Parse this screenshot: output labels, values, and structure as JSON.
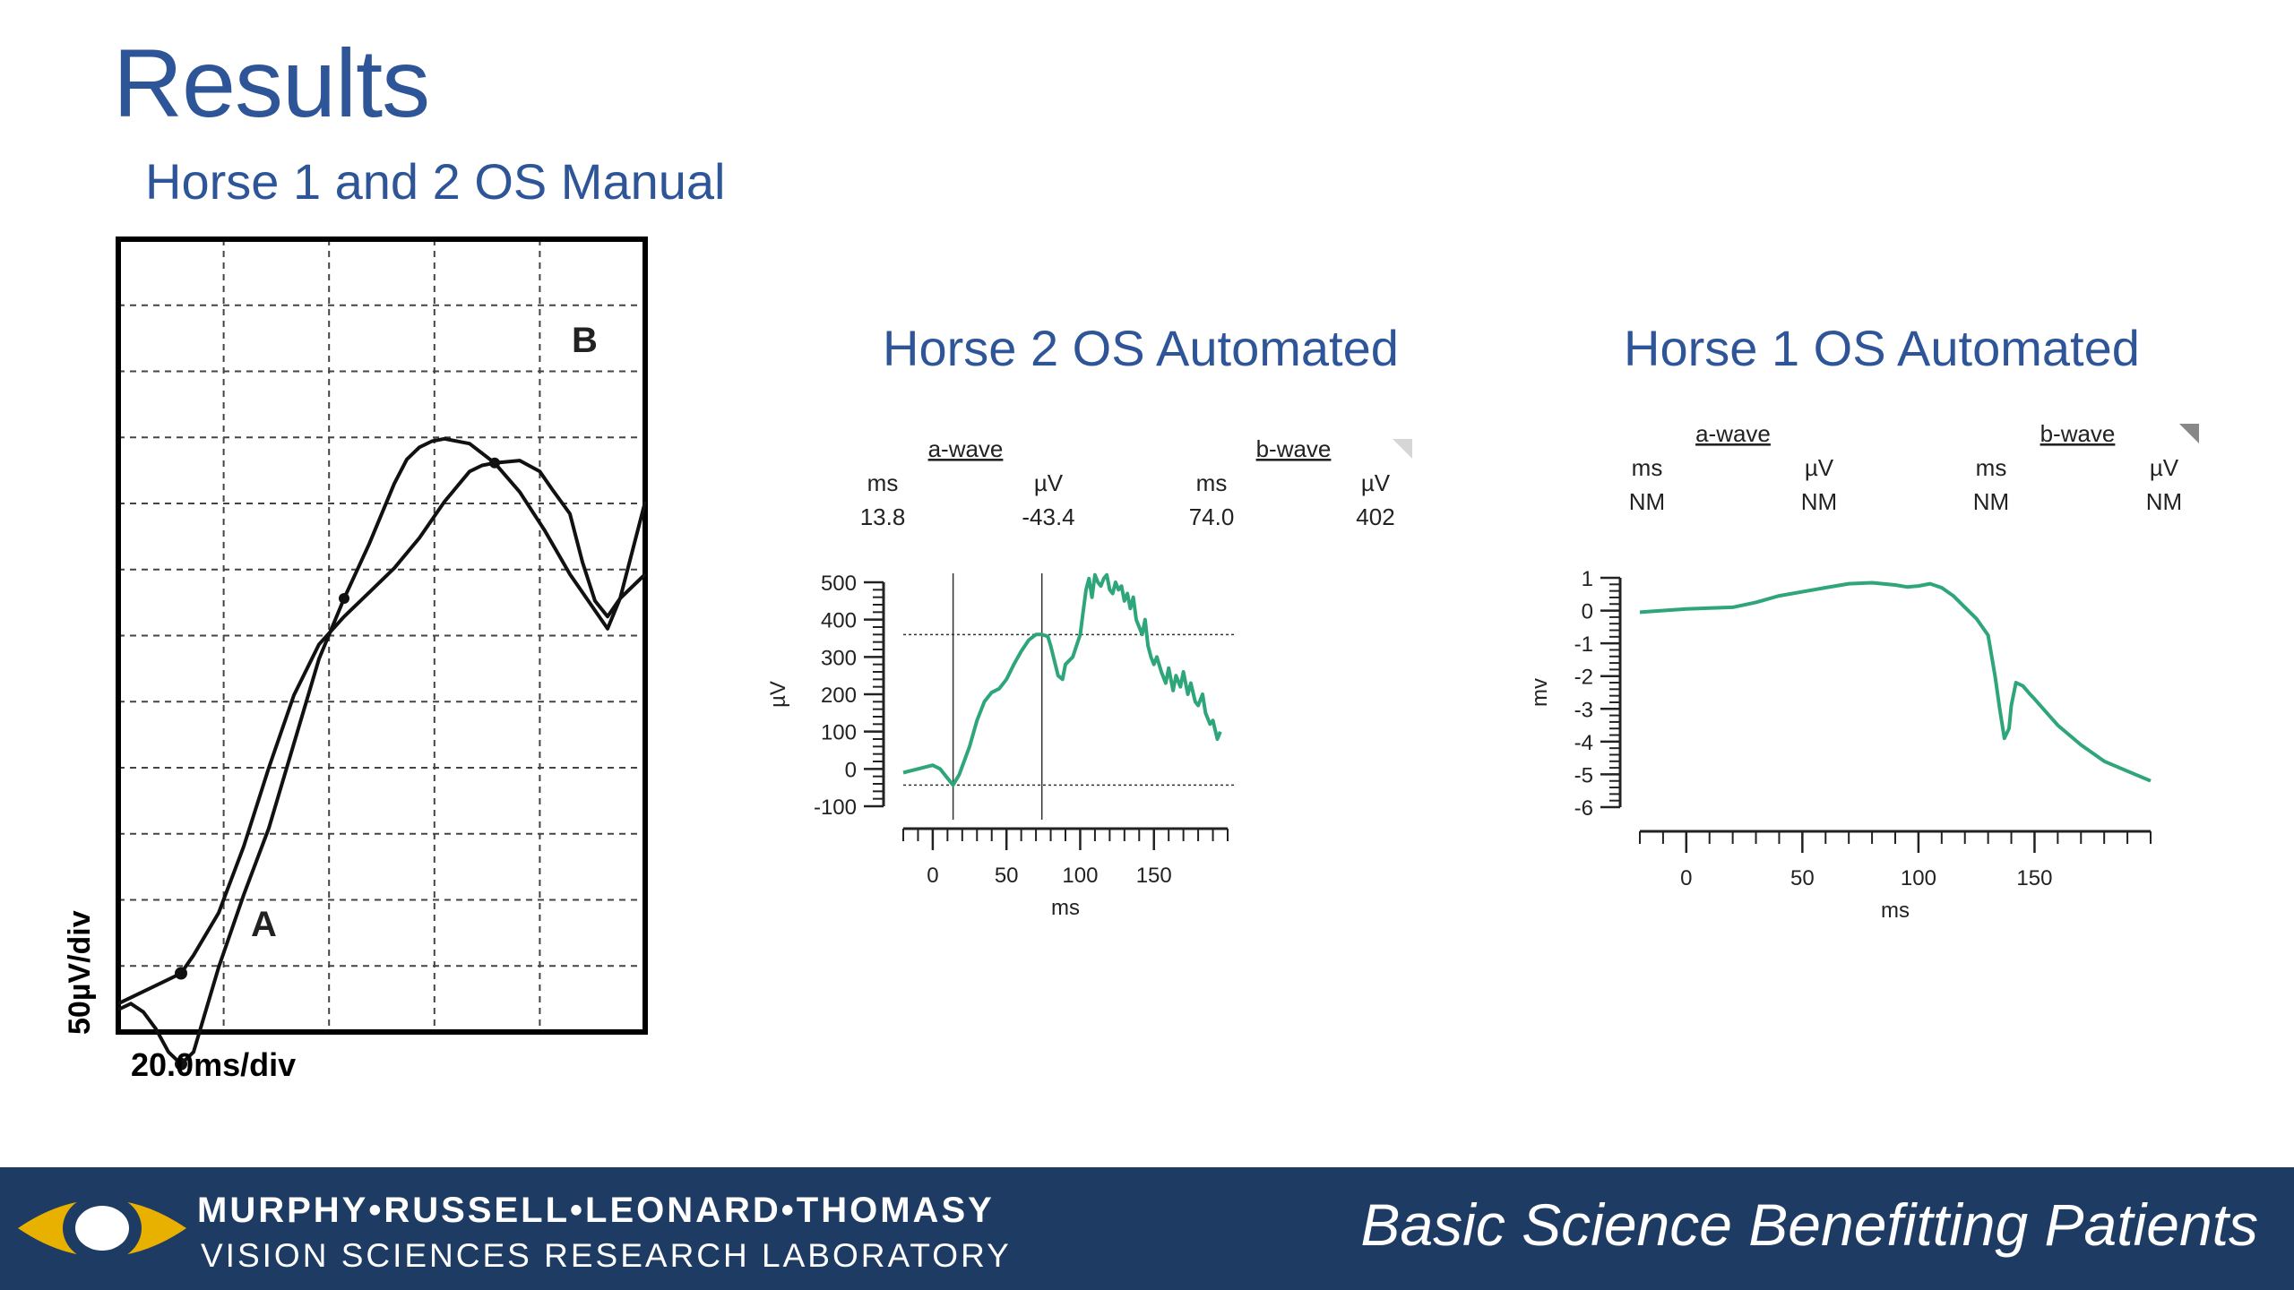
{
  "slide": {
    "title": "Results",
    "tagline": "Basic Science Benefitting Patients",
    "lab": {
      "name": "MURPHY•RUSSELL•LEONARD•THOMASY",
      "subtitle": "VISION SCIENCES RESEARCH LABORATORY"
    },
    "colors": {
      "title": "#2e5597",
      "footer": "#1e3c63",
      "logo_gold": "#e8b100",
      "trace_green": "#2ea67a"
    }
  },
  "chart_data": [
    {
      "type": "line",
      "title": "Horse 1 and 2 OS Manual",
      "xlabel": "20.0ms/div",
      "ylabel": "50µV/div",
      "grid": true,
      "annotations": {
        "a_label": "A",
        "b_label": "B"
      },
      "series": [
        {
          "x": [
            0,
            5,
            10,
            15,
            20,
            25,
            30,
            35,
            40,
            50,
            60,
            70,
            80,
            90,
            100,
            110,
            115,
            120,
            125,
            130,
            140,
            150,
            160,
            170,
            180,
            190,
            195,
            200,
            210
          ],
          "y": [
            -40,
            -35,
            -42,
            -56,
            -75,
            -85,
            -75,
            -40,
            -5,
            55,
            110,
            180,
            250,
            300,
            345,
            395,
            415,
            425,
            430,
            432,
            428,
            412,
            388,
            356,
            320,
            290,
            275,
            300,
            380
          ]
        },
        {
          "x": [
            0,
            10,
            20,
            25,
            30,
            40,
            50,
            60,
            70,
            80,
            90,
            100,
            110,
            120,
            130,
            140,
            145,
            150,
            160,
            168,
            173,
            180,
            185,
            190,
            195,
            200,
            210
          ],
          "y": [
            -35,
            -25,
            -15,
            -10,
            5,
            40,
            95,
            160,
            220,
            262,
            285,
            305,
            325,
            350,
            380,
            405,
            410,
            412,
            414,
            405,
            390,
            370,
            330,
            298,
            285,
            300,
            320
          ]
        }
      ]
    },
    {
      "type": "line",
      "title": "Horse 2 OS Automated",
      "xlabel": "ms",
      "ylabel": "µV",
      "xlim": [
        -20,
        200
      ],
      "ylim": [
        -100,
        500
      ],
      "xticks": [
        0,
        50,
        100,
        150
      ],
      "yticks": [
        500,
        400,
        300,
        200,
        100,
        0,
        -100
      ],
      "table": {
        "a_wave_label": "a-wave",
        "b_wave_label": "b-wave",
        "headers": [
          "ms",
          "µV",
          "ms",
          "µV"
        ],
        "values": [
          "13.8",
          "-43.4",
          "74.0",
          "402"
        ]
      },
      "markers": {
        "a_ms": 13.8,
        "a_uv": -43.4,
        "b_ms": 74.0,
        "b_uv": 360
      },
      "series": [
        {
          "x": [
            -20,
            -10,
            0,
            5,
            10,
            13.8,
            18,
            25,
            30,
            35,
            40,
            45,
            50,
            55,
            60,
            65,
            70,
            74,
            78,
            80,
            85,
            88,
            90,
            95,
            100,
            102,
            104,
            106,
            108,
            110,
            112,
            114,
            116,
            118,
            120,
            122,
            124,
            126,
            128,
            130,
            132,
            134,
            136,
            138,
            140,
            142,
            144,
            146,
            148,
            150,
            152,
            155,
            158,
            160,
            163,
            165,
            168,
            170,
            173,
            175,
            178,
            180,
            183,
            185,
            188,
            190,
            193,
            195
          ],
          "y": [
            -10,
            0,
            10,
            0,
            -25,
            -43,
            -15,
            60,
            130,
            180,
            205,
            215,
            240,
            280,
            315,
            345,
            360,
            360,
            355,
            330,
            250,
            240,
            280,
            300,
            360,
            420,
            480,
            510,
            460,
            520,
            500,
            490,
            510,
            520,
            480,
            470,
            500,
            480,
            490,
            450,
            470,
            430,
            460,
            400,
            380,
            360,
            400,
            330,
            300,
            280,
            300,
            260,
            230,
            270,
            210,
            250,
            220,
            260,
            200,
            230,
            180,
            170,
            200,
            150,
            120,
            130,
            80,
            100
          ]
        }
      ]
    },
    {
      "type": "line",
      "title": "Horse 1 OS Automated",
      "xlabel": "ms",
      "ylabel": "mv",
      "xlim": [
        -20,
        200
      ],
      "ylim": [
        -6,
        1
      ],
      "xticks": [
        0,
        50,
        100,
        150
      ],
      "yticks": [
        1,
        0,
        -1,
        -2,
        -3,
        -4,
        -5,
        -6
      ],
      "table": {
        "a_wave_label": "a-wave",
        "b_wave_label": "b-wave",
        "headers": [
          "ms",
          "µV",
          "ms",
          "µV"
        ],
        "values": [
          "NM",
          "NM",
          "NM",
          "NM"
        ]
      },
      "series": [
        {
          "x": [
            -20,
            0,
            20,
            30,
            40,
            60,
            70,
            80,
            90,
            95,
            100,
            105,
            110,
            115,
            120,
            125,
            130,
            133,
            135,
            137,
            139,
            140,
            142,
            145,
            148,
            150,
            155,
            160,
            170,
            180,
            190,
            200
          ],
          "y": [
            -0.05,
            0.05,
            0.1,
            0.25,
            0.45,
            0.7,
            0.82,
            0.85,
            0.78,
            0.72,
            0.75,
            0.82,
            0.7,
            0.45,
            0.1,
            -0.25,
            -0.75,
            -2.0,
            -3.0,
            -3.9,
            -3.6,
            -2.9,
            -2.2,
            -2.3,
            -2.55,
            -2.7,
            -3.1,
            -3.5,
            -4.1,
            -4.6,
            -4.9,
            -5.2
          ]
        }
      ]
    }
  ]
}
